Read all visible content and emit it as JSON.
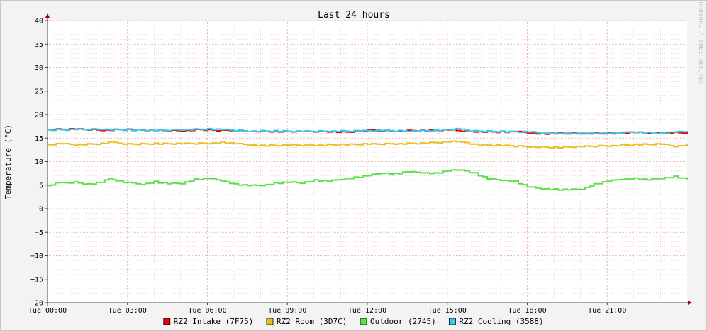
{
  "chart_data": {
    "type": "line",
    "title": "Last 24 hours",
    "ylabel": "Temperature (°C)",
    "xlabel": "",
    "watermark": "RRDTOOL / TOBI OETIKER",
    "ylim": [
      -20,
      40
    ],
    "yticks": [
      40,
      35,
      30,
      25,
      20,
      15,
      10,
      5,
      0,
      -5,
      -10,
      -15,
      -20
    ],
    "xlim": [
      0,
      24
    ],
    "xticks": [
      {
        "value": 0,
        "label": "Tue 00:00"
      },
      {
        "value": 3,
        "label": "Tue 03:00"
      },
      {
        "value": 6,
        "label": "Tue 06:00"
      },
      {
        "value": 9,
        "label": "Tue 09:00"
      },
      {
        "value": 12,
        "label": "Tue 12:00"
      },
      {
        "value": 15,
        "label": "Tue 15:00"
      },
      {
        "value": 18,
        "label": "Tue 18:00"
      },
      {
        "value": 21,
        "label": "Tue 21:00"
      }
    ],
    "grid": true,
    "legend_position": "bottom",
    "series": [
      {
        "name": "RZ2 Intake (7F75)",
        "color": "#ee0000",
        "x": [
          0,
          1,
          2,
          3,
          4,
          5,
          5.7,
          6.5,
          7.5,
          8.5,
          9.5,
          10.5,
          11.2,
          12,
          13,
          14,
          15,
          16,
          17,
          17.5,
          18,
          18.5,
          19,
          20,
          21,
          22,
          23,
          24
        ],
        "y": [
          16.8,
          16.9,
          16.7,
          16.8,
          16.6,
          16.6,
          16.8,
          16.6,
          16.5,
          16.4,
          16.4,
          16.4,
          16.3,
          16.6,
          16.5,
          16.6,
          16.7,
          16.4,
          16.3,
          16.4,
          16.2,
          15.9,
          16.0,
          16.0,
          16.0,
          16.2,
          16.1,
          16.2
        ]
      },
      {
        "name": "RZ2 Room (3D7C)",
        "color": "#e8c020",
        "x": [
          0,
          0.5,
          1,
          2,
          2.3,
          3,
          4,
          5,
          6,
          6.5,
          7,
          7.5,
          8,
          9,
          10,
          11,
          12,
          13,
          14,
          15,
          15.5,
          16,
          17,
          18,
          19,
          20,
          21,
          22,
          23,
          23.5,
          24
        ],
        "y": [
          13.6,
          13.8,
          13.6,
          13.8,
          14.1,
          13.7,
          13.8,
          13.8,
          13.9,
          14.1,
          13.8,
          13.6,
          13.4,
          13.5,
          13.5,
          13.6,
          13.7,
          13.8,
          13.9,
          14.2,
          14.3,
          13.6,
          13.4,
          13.2,
          13.0,
          13.2,
          13.4,
          13.6,
          13.7,
          13.3,
          13.6
        ]
      },
      {
        "name": "Outdoor (2745)",
        "color": "#5ce04a",
        "x": [
          0,
          0.3,
          1,
          1.5,
          2,
          2.3,
          2.7,
          3,
          3.5,
          4,
          4.5,
          5,
          5.5,
          6,
          6.5,
          7,
          7.5,
          8,
          8.5,
          9,
          9.5,
          10,
          10.5,
          11,
          11.5,
          12,
          12.5,
          13,
          13.5,
          14,
          14.5,
          15,
          15.5,
          16,
          16.5,
          17,
          17.5,
          18,
          18.5,
          19,
          19.5,
          20,
          20.5,
          21,
          21.5,
          22,
          22.5,
          23,
          23.5,
          24
        ],
        "y": [
          4.9,
          5.4,
          5.6,
          5.2,
          5.6,
          6.4,
          5.8,
          5.5,
          5.2,
          5.7,
          5.3,
          5.4,
          6.2,
          6.4,
          6.0,
          5.2,
          4.9,
          5.0,
          5.4,
          5.6,
          5.5,
          6.0,
          5.8,
          6.3,
          6.6,
          7.0,
          7.6,
          7.4,
          7.8,
          7.7,
          7.5,
          8.0,
          8.3,
          7.5,
          6.3,
          6.1,
          5.8,
          4.6,
          4.3,
          4.1,
          4.0,
          4.2,
          5.2,
          5.8,
          6.3,
          6.4,
          6.1,
          6.5,
          6.8,
          6.2
        ]
      },
      {
        "name": "RZ2 Cooling (3588)",
        "color": "#36ccee",
        "x": [
          0,
          1,
          2,
          3,
          4,
          5,
          6,
          6.5,
          7.5,
          8.5,
          9.5,
          10.5,
          11.5,
          12.5,
          13.5,
          14.5,
          15.3,
          16,
          17,
          18,
          19,
          20,
          21,
          22,
          23,
          23.5,
          24
        ],
        "y": [
          16.7,
          16.8,
          16.9,
          16.7,
          16.6,
          16.8,
          16.9,
          16.8,
          16.5,
          16.5,
          16.4,
          16.5,
          16.5,
          16.6,
          16.5,
          16.6,
          16.9,
          16.5,
          16.4,
          16.3,
          16.0,
          16.0,
          16.0,
          16.3,
          16.0,
          16.3,
          16.4
        ]
      }
    ]
  }
}
